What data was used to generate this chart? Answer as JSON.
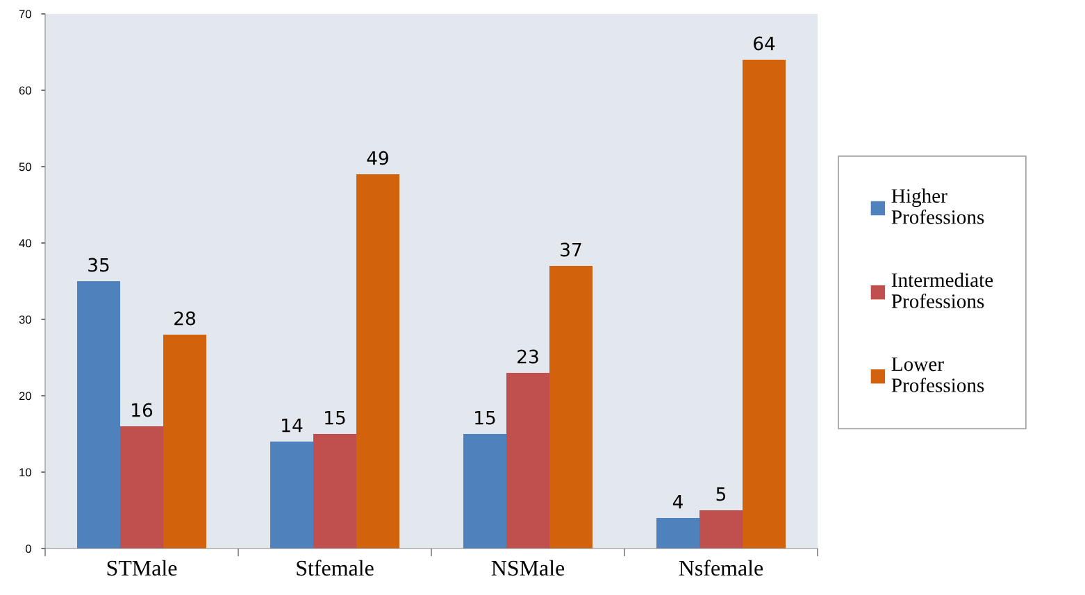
{
  "chart_data": {
    "type": "bar",
    "categories": [
      "STMale",
      "Stfemale",
      "NSMale",
      "Nsfemale"
    ],
    "series": [
      {
        "name": "Higher Professions",
        "color": "#4f81bd",
        "values": [
          35,
          14,
          15,
          4
        ]
      },
      {
        "name": "Intermediate Professions",
        "color": "#c0504d",
        "values": [
          16,
          15,
          23,
          5
        ]
      },
      {
        "name": "Lower Professions",
        "color": "#d2620c",
        "values": [
          28,
          49,
          37,
          64
        ]
      }
    ],
    "ylim": [
      0,
      70
    ],
    "yticks": [
      0,
      10,
      20,
      30,
      40,
      50,
      60,
      70
    ],
    "grid": false,
    "legend": "right",
    "data_labels": true
  }
}
